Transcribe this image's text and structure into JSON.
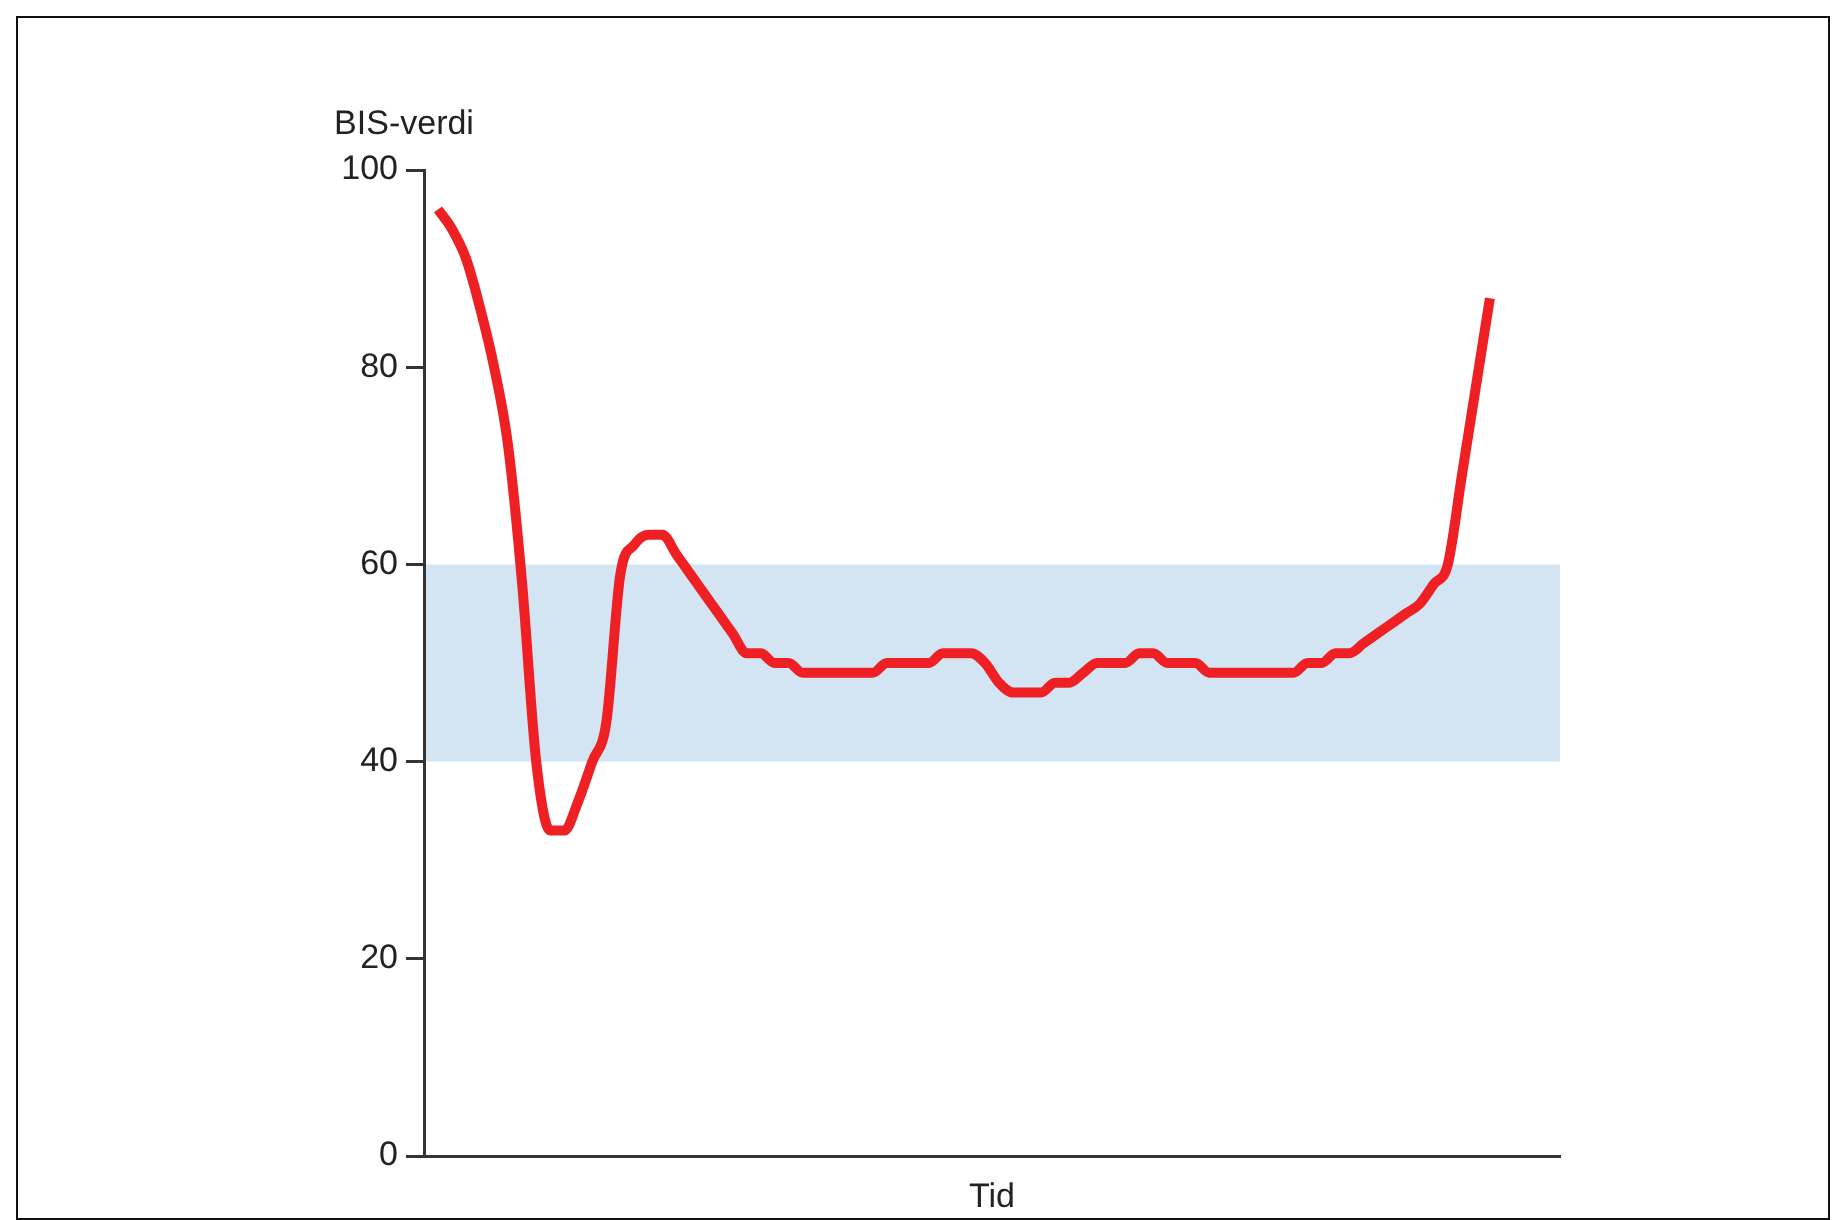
{
  "chart_data": {
    "type": "line",
    "ylabel": "BIS-verdi",
    "xlabel": "Tid",
    "categories": [
      null,
      null,
      null,
      null,
      null,
      null,
      null,
      null,
      null,
      null,
      null,
      null,
      null,
      null,
      null,
      null,
      null,
      null,
      null,
      null,
      null,
      null,
      null,
      null,
      null,
      null,
      null,
      null,
      null,
      null,
      null,
      null,
      null,
      null,
      null,
      null,
      null,
      null,
      null,
      null,
      null,
      null,
      null,
      null,
      null,
      null,
      null,
      null,
      null,
      null,
      null,
      null,
      null,
      null,
      null,
      null,
      null,
      null,
      null,
      null,
      null,
      null,
      null,
      null,
      null,
      null,
      null,
      null,
      null,
      null,
      null,
      null,
      null,
      null,
      null,
      null,
      null,
      null,
      null,
      null,
      null,
      null
    ],
    "series": [
      {
        "color": "#ee2024",
        "values": [
          null,
          96,
          94,
          91,
          86,
          80,
          72,
          58,
          40,
          33,
          33,
          36,
          40,
          44,
          59,
          62,
          63,
          63,
          61,
          59,
          57,
          55,
          53,
          51,
          51,
          50,
          50,
          49,
          49,
          49,
          49,
          49,
          49,
          50,
          50,
          50,
          50,
          51,
          51,
          51,
          50,
          48,
          47,
          47,
          47,
          48,
          48,
          49,
          50,
          50,
          50,
          51,
          51,
          50,
          50,
          50,
          49,
          49,
          49,
          49,
          49,
          49,
          49,
          50,
          50,
          51,
          51,
          52,
          53,
          54,
          55,
          56,
          58,
          60,
          69,
          78,
          87,
          null,
          null,
          null,
          null,
          null
        ]
      }
    ],
    "ylim": [
      0,
      100
    ],
    "yticks": [
      0,
      20,
      40,
      60,
      80,
      100
    ],
    "bands": [
      {
        "axis": "y",
        "from": 40,
        "to": 60,
        "color": "#d3e4f3"
      }
    ],
    "tick_labels": "y"
  }
}
